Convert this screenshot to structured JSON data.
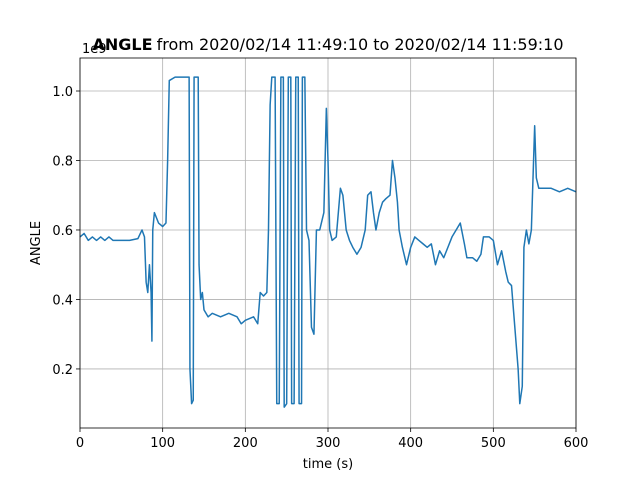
{
  "chart_data": {
    "type": "line",
    "title": {
      "bold": "ANGLE",
      "rest": "from 2020/02/14 11:49:10 to 2020/02/14 11:59:10"
    },
    "x_label": "time (s)",
    "y_label": "ANGLE",
    "y_offset_label": "1e9",
    "xlim": [
      0,
      600
    ],
    "xticks": [
      0,
      100,
      200,
      300,
      400,
      500,
      600
    ],
    "ylim": [
      0.03,
      1.095
    ],
    "yticks": [
      0.2,
      0.4,
      0.6,
      0.8,
      {
        "value": 1.0,
        "label": "1.0"
      }
    ],
    "grid": true,
    "series": [
      {
        "name": "ANGLE",
        "color": "#1f77b4",
        "x": [
          0,
          5,
          10,
          15,
          20,
          25,
          30,
          35,
          40,
          50,
          60,
          70,
          75,
          78,
          80,
          82,
          84,
          86,
          87,
          88,
          90,
          95,
          100,
          104,
          106,
          108,
          115,
          125,
          132,
          133,
          135,
          137,
          138,
          143,
          144,
          146,
          148,
          150,
          155,
          160,
          170,
          180,
          190,
          195,
          200,
          210,
          215,
          218,
          222,
          226,
          228,
          230,
          232,
          236,
          238,
          241,
          243,
          246,
          247,
          250,
          252,
          255,
          256,
          259,
          261,
          264,
          265,
          268,
          269,
          272,
          274,
          277,
          280,
          283,
          286,
          290,
          295,
          298,
          300,
          302,
          305,
          310,
          315,
          318,
          322,
          326,
          330,
          335,
          340,
          345,
          348,
          352,
          355,
          358,
          362,
          366,
          370,
          375,
          378,
          381,
          384,
          386,
          390,
          395,
          400,
          405,
          410,
          415,
          420,
          425,
          430,
          435,
          440,
          445,
          450,
          455,
          460,
          465,
          468,
          475,
          480,
          485,
          488,
          495,
          500,
          505,
          510,
          515,
          518,
          522,
          525,
          530,
          532,
          535,
          537,
          540,
          543,
          546,
          550,
          552,
          555,
          560,
          570,
          580,
          590,
          600
        ],
        "values": [
          0.58,
          0.59,
          0.57,
          0.58,
          0.57,
          0.58,
          0.57,
          0.58,
          0.57,
          0.57,
          0.57,
          0.575,
          0.6,
          0.58,
          0.45,
          0.42,
          0.5,
          0.42,
          0.28,
          0.6,
          0.65,
          0.62,
          0.61,
          0.62,
          0.8,
          1.03,
          1.04,
          1.04,
          1.04,
          0.2,
          0.1,
          0.11,
          1.04,
          1.04,
          0.5,
          0.4,
          0.42,
          0.37,
          0.35,
          0.36,
          0.35,
          0.36,
          0.35,
          0.33,
          0.34,
          0.35,
          0.33,
          0.42,
          0.41,
          0.42,
          0.6,
          0.96,
          1.04,
          1.04,
          0.1,
          0.1,
          1.04,
          1.04,
          0.09,
          0.1,
          1.04,
          1.04,
          0.1,
          0.1,
          1.04,
          1.04,
          0.1,
          0.1,
          1.04,
          1.04,
          0.6,
          0.57,
          0.32,
          0.3,
          0.6,
          0.6,
          0.65,
          0.95,
          0.8,
          0.6,
          0.57,
          0.58,
          0.72,
          0.7,
          0.6,
          0.57,
          0.55,
          0.53,
          0.55,
          0.6,
          0.7,
          0.71,
          0.65,
          0.6,
          0.65,
          0.68,
          0.69,
          0.7,
          0.8,
          0.75,
          0.68,
          0.6,
          0.55,
          0.5,
          0.55,
          0.58,
          0.57,
          0.56,
          0.55,
          0.56,
          0.5,
          0.54,
          0.52,
          0.55,
          0.58,
          0.6,
          0.62,
          0.56,
          0.52,
          0.52,
          0.51,
          0.53,
          0.58,
          0.58,
          0.57,
          0.5,
          0.54,
          0.48,
          0.45,
          0.44,
          0.35,
          0.2,
          0.1,
          0.15,
          0.55,
          0.6,
          0.56,
          0.6,
          0.9,
          0.75,
          0.72,
          0.72,
          0.72,
          0.71,
          0.72,
          0.71
        ]
      }
    ]
  }
}
